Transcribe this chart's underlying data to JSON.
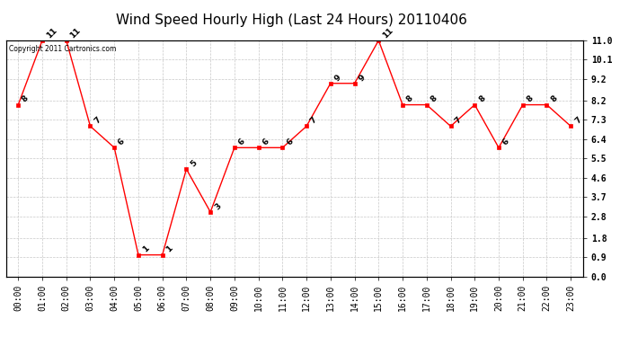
{
  "title": "Wind Speed Hourly High (Last 24 Hours) 20110406",
  "copyright_text": "Copyright 2011 Cartronics.com",
  "hours": [
    "00:00",
    "01:00",
    "02:00",
    "03:00",
    "04:00",
    "05:00",
    "06:00",
    "07:00",
    "08:00",
    "09:00",
    "10:00",
    "11:00",
    "12:00",
    "13:00",
    "14:00",
    "15:00",
    "16:00",
    "17:00",
    "18:00",
    "19:00",
    "20:00",
    "21:00",
    "22:00",
    "23:00"
  ],
  "values": [
    8,
    11,
    11,
    7,
    6,
    1,
    1,
    5,
    3,
    6,
    6,
    6,
    7,
    9,
    9,
    11,
    8,
    8,
    7,
    8,
    6,
    8,
    8,
    7
  ],
  "line_color": "#ff0000",
  "marker_color": "#ff0000",
  "bg_color": "#ffffff",
  "grid_color": "#c8c8c8",
  "ylim": [
    0.0,
    11.0
  ],
  "yticks": [
    0.0,
    0.9,
    1.8,
    2.8,
    3.7,
    4.6,
    5.5,
    6.4,
    7.3,
    8.2,
    9.2,
    10.1,
    11.0
  ],
  "title_fontsize": 11,
  "tick_fontsize": 7,
  "annot_fontsize": 6.5
}
